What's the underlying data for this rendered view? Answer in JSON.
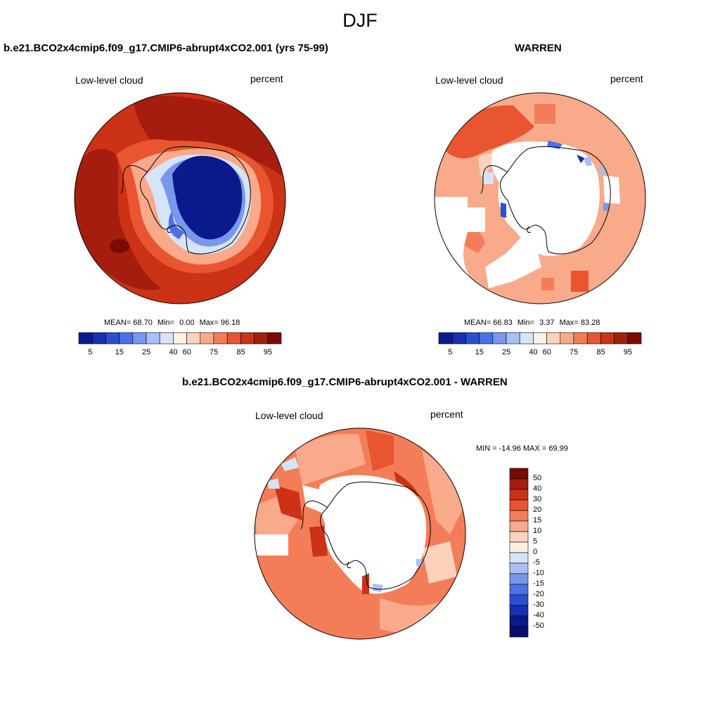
{
  "figure": {
    "season": "DJF"
  },
  "panels": {
    "model": {
      "title": "b.e21.BCO2x4cmip6.f09_g17.CMIP6-abrupt4xCO2.001 (yrs 75-99)",
      "variable": "Low-level cloud",
      "units": "percent",
      "mean_label": "MEAN=",
      "mean": "68.70",
      "min_label": "Min=",
      "min": "0.00",
      "max_label": "Max=",
      "max": "96.18"
    },
    "obs": {
      "title": "WARREN",
      "variable": "Low-level cloud",
      "units": "percent",
      "mean_label": "MEAN=",
      "mean": "66.83",
      "min_label": "Min=",
      "min": "3.37",
      "max_label": "Max=",
      "max": "83.28"
    },
    "diff": {
      "title": "b.e21.BCO2x4cmip6.f09_g17.CMIP6-abrupt4xCO2.001 - WARREN",
      "variable": "Low-level cloud",
      "units": "percent",
      "minmax_text": "MIN = -14.96 MAX =  69.99"
    }
  },
  "colorbars": {
    "absolute": {
      "levels": [
        "5",
        "15",
        "25",
        "40",
        "60",
        "75",
        "85",
        "95"
      ],
      "colors": [
        "#0a1a8c",
        "#1530b0",
        "#2a50d0",
        "#4a72e6",
        "#7898ee",
        "#a8c0f5",
        "#d6e4fa",
        "#fff0e4",
        "#fdd2bc",
        "#f8aa8a",
        "#f37d58",
        "#e85530",
        "#cc3215",
        "#a51d0e",
        "#7a0a05"
      ]
    },
    "difference": {
      "levels": [
        "50",
        "40",
        "30",
        "20",
        "15",
        "10",
        "5",
        "0",
        "-5",
        "-10",
        "-15",
        "-20",
        "-30",
        "-40",
        "-50"
      ],
      "colors": [
        "#7a0a05",
        "#a51d0e",
        "#cc3215",
        "#e85530",
        "#f37d58",
        "#f8aa8a",
        "#fdd2bc",
        "#fff0e4",
        "#d6e4fa",
        "#a8c0f5",
        "#7898ee",
        "#4a72e6",
        "#2a50d0",
        "#1530b0",
        "#0a1a8c",
        "#05106a"
      ]
    }
  }
}
